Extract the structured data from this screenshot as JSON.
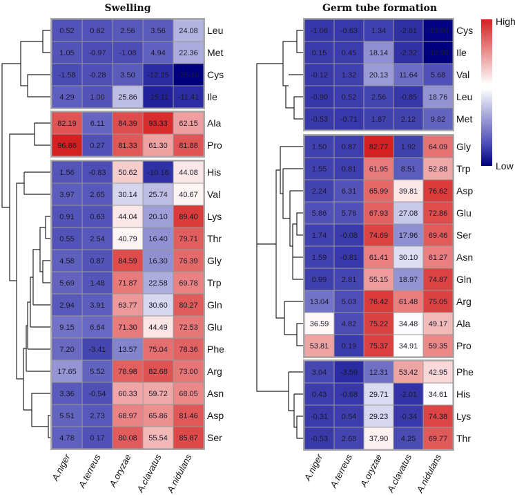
{
  "chart_data": [
    {
      "type": "heatmap",
      "title": "Swelling",
      "columns": [
        "A.niger",
        "A.terreus",
        "A.oryzae",
        "A.clavatus",
        "A.nidulans"
      ],
      "row_groups": [
        4,
        2,
        13
      ],
      "rows": [
        "Leu",
        "Met",
        "Cys",
        "Ile",
        "Ala",
        "Pro",
        "His",
        "Val",
        "Lys",
        "Thr",
        "Gly",
        "Trp",
        "Gln",
        "Glu",
        "Phe",
        "Arg",
        "Asn",
        "Asp",
        "Ser"
      ],
      "values": [
        [
          0.52,
          0.62,
          2.56,
          3.56,
          24.08
        ],
        [
          1.05,
          -0.97,
          -1.08,
          4.94,
          22.36
        ],
        [
          -1.58,
          -0.28,
          3.5,
          -12.25,
          -25.16
        ],
        [
          4.29,
          1.0,
          25.86,
          -15.11,
          -11.41
        ],
        [
          82.19,
          6.11,
          84.39,
          93.33,
          62.15
        ],
        [
          96.88,
          0.27,
          81.33,
          61.3,
          81.88
        ],
        [
          1.56,
          -0.83,
          50.62,
          -10.18,
          44.08
        ],
        [
          3.97,
          2.65,
          30.14,
          25.74,
          40.67
        ],
        [
          0.91,
          0.63,
          44.04,
          20.1,
          89.4
        ],
        [
          0.55,
          2.54,
          40.79,
          16.4,
          79.71
        ],
        [
          4.58,
          0.87,
          84.59,
          16.3,
          76.39
        ],
        [
          5.69,
          1.48,
          71.87,
          22.58,
          69.78
        ],
        [
          2.94,
          3.91,
          63.77,
          30.6,
          80.27
        ],
        [
          9.15,
          6.64,
          71.3,
          44.49,
          72.53
        ],
        [
          7.2,
          -3.41,
          13.57,
          75.04,
          78.36
        ],
        [
          17.65,
          5.52,
          78.98,
          82.68,
          73.0
        ],
        [
          3.36,
          -0.54,
          60.33,
          59.72,
          68.05
        ],
        [
          5.51,
          2.73,
          68.97,
          65.86,
          81.46
        ],
        [
          4.78,
          0.17,
          80.08,
          55.54,
          85.87
        ]
      ],
      "value_labels": [
        [
          "0.52",
          "0.62",
          "2.56",
          "3.56",
          "24.08"
        ],
        [
          "1.05",
          "-0.97",
          "-1.08",
          "4.94",
          "22.36"
        ],
        [
          "-1.58",
          "-0.28",
          "3.50",
          "-12.25",
          "-25.16"
        ],
        [
          "4.29",
          "1.00",
          "25.86",
          "-15.11",
          "-11.41"
        ],
        [
          "82.19",
          "6.11",
          "84.39",
          "93.33",
          "62.15"
        ],
        [
          "96.88",
          "0.27",
          "81.33",
          "61.30",
          "81.88"
        ],
        [
          "1.56",
          "-0.83",
          "50.62",
          "-10.18",
          "44.08"
        ],
        [
          "3.97",
          "2.65",
          "30.14",
          "25.74",
          "40.67"
        ],
        [
          "0.91",
          "0.63",
          "44.04",
          "20.10",
          "89.40"
        ],
        [
          "0.55",
          "2.54",
          "40.79",
          "16.40",
          "79.71"
        ],
        [
          "4.58",
          "0.87",
          "84.59",
          "16.30",
          "76.39"
        ],
        [
          "5.69",
          "1.48",
          "71.87",
          "22.58",
          "69.78"
        ],
        [
          "2.94",
          "3.91",
          "63.77",
          "30.60",
          "80.27"
        ],
        [
          "9.15",
          "6.64",
          "71.30",
          "44.49",
          "72.53"
        ],
        [
          "7.20",
          "-3.41",
          "13.57",
          "75.04",
          "78.36"
        ],
        [
          "17.65",
          "5.52",
          "78.98",
          "82.68",
          "73.00"
        ],
        [
          "3.36",
          "-0.54",
          "60.33",
          "59.72",
          "68.05"
        ],
        [
          "5.51",
          "2.73",
          "68.97",
          "65.86",
          "81.46"
        ],
        [
          "4.78",
          "0.17",
          "80.08",
          "55.54",
          "85.87"
        ]
      ],
      "color_mid": 38
    },
    {
      "type": "heatmap",
      "title": "Germ tube formation",
      "columns": [
        "A.niger",
        "A.terreus",
        "A.oryzae",
        "A.clavatus",
        "A.nidulans"
      ],
      "row_groups": [
        5,
        10,
        4
      ],
      "rows": [
        "Cys",
        "Ile",
        "Val",
        "Leu",
        "Met",
        "Gly",
        "Trp",
        "Asp",
        "Glu",
        "Ser",
        "Asn",
        "Gln",
        "Arg",
        "Ala",
        "Pro",
        "Phe",
        "His",
        "Lys",
        "Thr"
      ],
      "values": [
        [
          -1.06,
          -0.63,
          1.34,
          -2.61,
          -13.06
        ],
        [
          0.15,
          0.45,
          18.14,
          -2.32,
          -13.98
        ],
        [
          -0.12,
          1.32,
          20.13,
          11.64,
          5.68
        ],
        [
          -0.9,
          0.52,
          2.56,
          -0.85,
          18.76
        ],
        [
          -0.53,
          -0.71,
          1.87,
          2.12,
          9.82
        ],
        [
          1.5,
          0.87,
          82.77,
          1.92,
          64.09
        ],
        [
          1.55,
          0.81,
          61.95,
          8.51,
          52.88
        ],
        [
          2.24,
          6.31,
          65.99,
          39.81,
          76.62
        ],
        [
          5.86,
          5.76,
          67.93,
          27.08,
          72.86
        ],
        [
          1.74,
          -0.08,
          74.69,
          17.96,
          69.46
        ],
        [
          1.59,
          -0.81,
          61.41,
          30.1,
          61.27
        ],
        [
          0.99,
          2.81,
          55.15,
          18.97,
          74.87
        ],
        [
          13.04,
          5.03,
          76.42,
          61.48,
          75.05
        ],
        [
          36.59,
          4.82,
          75.22,
          34.48,
          49.17
        ],
        [
          53.81,
          0.19,
          75.37,
          34.91,
          59.35
        ],
        [
          3.04,
          -3.59,
          12.31,
          53.42,
          42.95
        ],
        [
          0.43,
          -0.68,
          29.71,
          -2.01,
          34.61
        ],
        [
          -0.31,
          0.54,
          29.23,
          -0.34,
          74.38
        ],
        [
          -0.53,
          2.68,
          37.9,
          4.25,
          69.77
        ]
      ],
      "value_labels": [
        [
          "-1.06",
          "-0.63",
          "1.34",
          "-2.61",
          "-13.06"
        ],
        [
          "0.15",
          "0.45",
          "18.14",
          "-2.32",
          "-13.98"
        ],
        [
          "-0.12",
          "1.32",
          "20.13",
          "11.64",
          "5.68"
        ],
        [
          "-0.90",
          "0.52",
          "2.56",
          "-0.85",
          "18.76"
        ],
        [
          "-0.53",
          "-0.71",
          "1.87",
          "2.12",
          "9.82"
        ],
        [
          "1.50",
          "0.87",
          "82.77",
          "1.92",
          "64.09"
        ],
        [
          "1.55",
          "0.81",
          "61.95",
          "8.51",
          "52.88"
        ],
        [
          "2.24",
          "6.31",
          "65.99",
          "39.81",
          "76.62"
        ],
        [
          "5.86",
          "5.76",
          "67.93",
          "27.08",
          "72.86"
        ],
        [
          "1.74",
          "-0.08",
          "74.69",
          "17.96",
          "69.46"
        ],
        [
          "1.59",
          "-0.81",
          "61.41",
          "30.10",
          "61.27"
        ],
        [
          "0.99",
          "2.81",
          "55.15",
          "18.97",
          "74.87"
        ],
        [
          "13.04",
          "5.03",
          "76.42",
          "61.48",
          "75.05"
        ],
        [
          "36.59",
          "4.82",
          "75.22",
          "34.48",
          "49.17"
        ],
        [
          "53.81",
          "0.19",
          "75.37",
          "34.91",
          "59.35"
        ],
        [
          "3.04",
          "-3.59",
          "12.31",
          "53.42",
          "42.95"
        ],
        [
          "0.43",
          "-0.68",
          "29.71",
          "-2.01",
          "34.61"
        ],
        [
          "-0.31",
          "0.54",
          "29.23",
          "-0.34",
          "74.38"
        ],
        [
          "-0.53",
          "2.68",
          "37.90",
          "4.25",
          "69.77"
        ]
      ],
      "color_mid": 35
    }
  ],
  "legend": {
    "high_label": "High",
    "low_label": "Low",
    "high_color": "#d42020",
    "mid_color": "#ffffff",
    "low_color": "#00007f"
  }
}
